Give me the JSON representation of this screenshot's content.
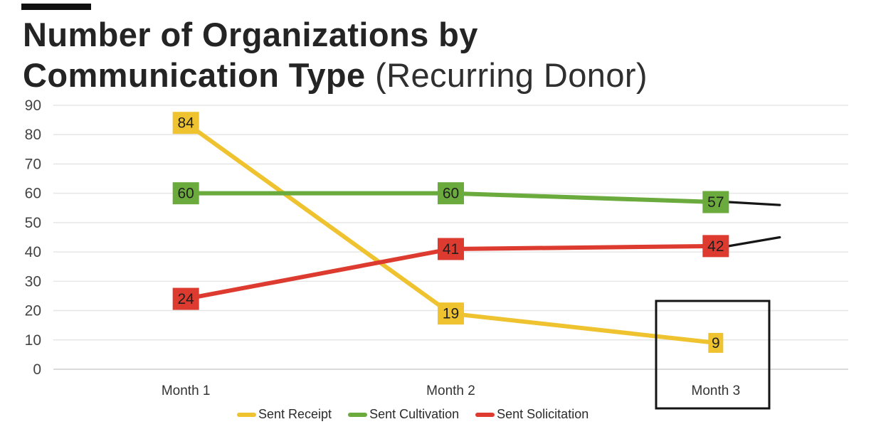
{
  "title": {
    "line1_bold": "Number of Organizations by",
    "line2_bold": "Communication Type",
    "line2_light": "(Recurring Donor)"
  },
  "colors": {
    "sent_receipt": "#EFC32F",
    "sent_cultivation": "#6BAB3D",
    "sent_solicitation": "#DD3B2F",
    "projection_line": "#161616",
    "highlight_box": "#141414",
    "grid_line": "#e6e6e6",
    "grid_line_zero": "#cfcfcf",
    "axis_text": "#444444",
    "point_label_text": "#1f1f1f",
    "title_text": "#242424"
  },
  "chart_data": {
    "type": "line",
    "categories": [
      "Month 1",
      "Month 2",
      "Month 3"
    ],
    "series": [
      {
        "name": "Sent Receipt",
        "color_key": "sent_receipt",
        "values": [
          84,
          19,
          9
        ],
        "point_labels": [
          "84",
          "19",
          "9"
        ]
      },
      {
        "name": "Sent Cultivation",
        "color_key": "sent_cultivation",
        "values": [
          60,
          60,
          57
        ],
        "point_labels": [
          "60",
          "60",
          "57"
        ]
      },
      {
        "name": "Sent Solicitation",
        "color_key": "sent_solicitation",
        "values": [
          24,
          41,
          42
        ],
        "point_labels": [
          "24",
          "41",
          "42"
        ]
      }
    ],
    "ylim": [
      0,
      90
    ],
    "yticks": [
      90,
      80,
      70,
      60,
      50,
      40,
      30,
      20,
      10,
      0
    ],
    "grid": true,
    "legend_position": "bottom",
    "annotations": {
      "highlight_box": {
        "category": "Month 3",
        "note": "black rectangle drawn around the Month 3 low point and its axis label"
      },
      "projections": [
        {
          "series": "Sent Cultivation",
          "end_value": 56,
          "trend": "down"
        },
        {
          "series": "Sent Solicitation",
          "end_value": 45,
          "trend": "up"
        }
      ]
    }
  },
  "legend": {
    "items": [
      {
        "label": "Sent Receipt"
      },
      {
        "label": "Sent Cultivation"
      },
      {
        "label": "Sent Solicitation"
      }
    ]
  }
}
